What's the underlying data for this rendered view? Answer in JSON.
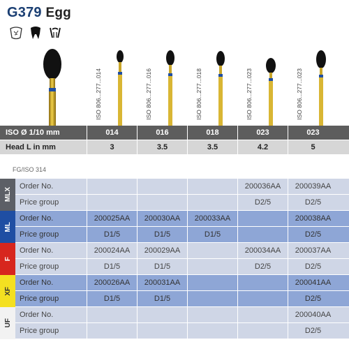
{
  "header": {
    "code": "G379",
    "name": "Egg"
  },
  "icons": [
    "dental-cavity-icon",
    "molar-icon",
    "crown-prep-icon"
  ],
  "bur_columns": [
    {
      "iso": "ISO 806...277...014"
    },
    {
      "iso": "ISO 806...277...016"
    },
    {
      "iso": "ISO 806...277...018"
    },
    {
      "iso": "ISO 806...277...023"
    },
    {
      "iso": "ISO 806...277...023"
    }
  ],
  "spec": {
    "iso_label": "ISO Ø 1/10 mm",
    "iso_values": [
      "014",
      "016",
      "018",
      "023",
      "023"
    ],
    "head_label": "Head L in mm",
    "head_values": [
      "3",
      "3.5",
      "3.5",
      "4.2",
      "5"
    ]
  },
  "shank": "FG/ISO 314",
  "groups": [
    {
      "band": "MLX",
      "order_label": "Order No.",
      "orders": [
        "",
        "",
        "",
        "200036AA",
        "200039AA"
      ],
      "price_label": "Price group",
      "prices": [
        "",
        "",
        "",
        "D2/5",
        "D2/5"
      ]
    },
    {
      "band": "ML",
      "order_label": "Order No.",
      "orders": [
        "200025AA",
        "200030AA",
        "200033AA",
        "",
        "200038AA"
      ],
      "price_label": "Price group",
      "prices": [
        "D1/5",
        "D1/5",
        "D1/5",
        "",
        "D2/5"
      ]
    },
    {
      "band": "F",
      "order_label": "Order No.",
      "orders": [
        "200024AA",
        "200029AA",
        "",
        "200034AA",
        "200037AA"
      ],
      "price_label": "Price group",
      "prices": [
        "D1/5",
        "D1/5",
        "",
        "D2/5",
        "D2/5"
      ]
    },
    {
      "band": "XF",
      "order_label": "Order No.",
      "orders": [
        "200026AA",
        "200031AA",
        "",
        "",
        "200041AA"
      ],
      "price_label": "Price group",
      "prices": [
        "D1/5",
        "D1/5",
        "",
        "",
        "D2/5"
      ]
    },
    {
      "band": "UF",
      "order_label": "Order No.",
      "orders": [
        "",
        "",
        "",
        "",
        "200040AA"
      ],
      "price_label": "Price group",
      "prices": [
        "",
        "",
        "",
        "",
        "D2/5"
      ]
    }
  ],
  "colors": {
    "title": "#1b3f73",
    "mlx": "#5c5f66",
    "ml": "#1f4ea3",
    "f": "#d7261e",
    "xf": "#f4e021",
    "uf": "#f2f2f2"
  }
}
